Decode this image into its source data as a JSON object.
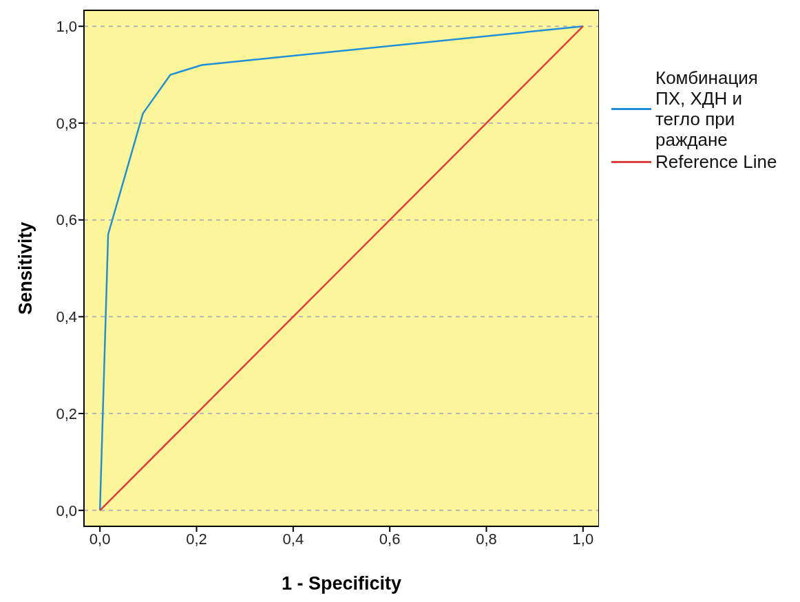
{
  "chart_data": {
    "type": "line",
    "xlabel": "1 - Specificity",
    "ylabel": "Sensitivity",
    "xlim": [
      -0.033,
      1.033
    ],
    "ylim": [
      -0.033,
      1.033
    ],
    "xticks": [
      {
        "value": 0,
        "label": "0,0"
      },
      {
        "value": 0.2,
        "label": "0,2"
      },
      {
        "value": 0.4,
        "label": "0,4"
      },
      {
        "value": 0.6,
        "label": "0,6"
      },
      {
        "value": 0.8,
        "label": "0,8"
      },
      {
        "value": 1,
        "label": "1,0"
      }
    ],
    "yticks": [
      {
        "value": 0,
        "label": "0,0"
      },
      {
        "value": 0.2,
        "label": "0,2"
      },
      {
        "value": 0.4,
        "label": "0,4"
      },
      {
        "value": 0.6,
        "label": "0,6"
      },
      {
        "value": 0.8,
        "label": "0,8"
      },
      {
        "value": 1,
        "label": "1,0"
      }
    ],
    "grid": "y",
    "legend": "right",
    "series": [
      {
        "name": "Комбинация ПХ, ХДН и тегло при раждане",
        "color": "#1f8fd8",
        "x": [
          0,
          0.017,
          0.089,
          0.146,
          0.211,
          1
        ],
        "values": [
          0,
          0.57,
          0.82,
          0.9,
          0.92,
          1
        ]
      },
      {
        "name": "Reference Line",
        "color": "#e03c3c",
        "x": [
          0,
          1
        ],
        "values": [
          0,
          1
        ]
      }
    ]
  }
}
